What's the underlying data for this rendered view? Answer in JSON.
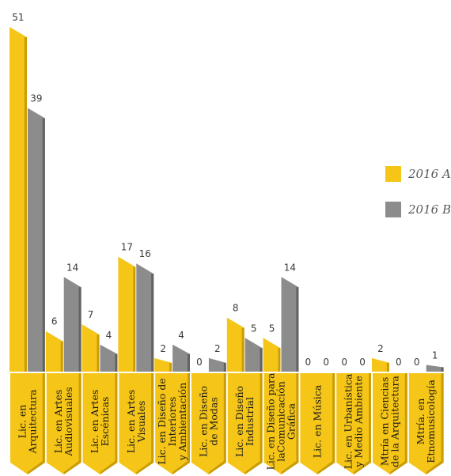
{
  "chart_data": {
    "type": "bar",
    "categories": [
      [
        "Lic. en",
        "Arquitectura"
      ],
      [
        "Lic. en Artes",
        "Audiovisuales"
      ],
      [
        "Lic. en Artes",
        "Escénicas"
      ],
      [
        "Lic. en Artes",
        "Visuales"
      ],
      [
        "Lic. en Diseño de",
        "Interiores",
        "y Ambientación"
      ],
      [
        "Lic. en Diseño",
        "de Modas"
      ],
      [
        "Lic. en Diseño",
        "Industrial"
      ],
      [
        "Lic. en Diseño para",
        "laComunicación",
        "Gráfica"
      ],
      [
        "Lic. en Música"
      ],
      [
        "Lic. en Urbanística",
        "y Medio Ambiente"
      ],
      [
        "Mtría en Ciencias",
        "de la Arquitectura"
      ],
      [
        "Mtría. en",
        "Etnomusicología"
      ]
    ],
    "series": [
      {
        "name": "2016 A",
        "color": "#f5c518",
        "values": [
          51,
          6,
          7,
          17,
          2,
          0,
          8,
          5,
          0,
          0,
          2,
          0
        ]
      },
      {
        "name": "2016 B",
        "color": "#8c8c8c",
        "values": [
          39,
          14,
          4,
          16,
          4,
          2,
          5,
          14,
          0,
          0,
          0,
          1
        ]
      }
    ],
    "legend_position": "right"
  }
}
